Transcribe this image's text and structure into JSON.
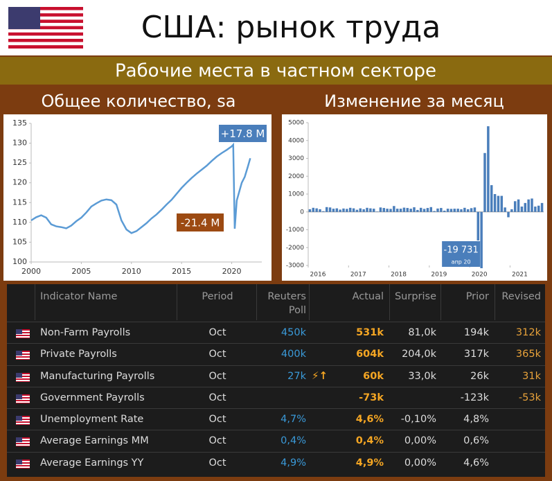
{
  "header": {
    "title": "США: рынок труда",
    "subtitle": "Рабочие места в частном секторе"
  },
  "chart_data": [
    {
      "type": "line",
      "title": "Общее количество, sa",
      "color": "#5b9bd5",
      "x": [
        2000,
        2000.5,
        2001,
        2001.5,
        2002,
        2002.5,
        2003,
        2003.5,
        2004,
        2004.5,
        2005,
        2005.5,
        2006,
        2006.5,
        2007,
        2007.5,
        2008,
        2008.5,
        2009,
        2009.5,
        2010,
        2010.5,
        2011,
        2011.5,
        2012,
        2012.5,
        2013,
        2013.5,
        2014,
        2014.5,
        2015,
        2015.5,
        2016,
        2016.5,
        2017,
        2017.5,
        2018,
        2018.5,
        2019,
        2019.5,
        2020,
        2020.15,
        2020.3,
        2020.5,
        2021,
        2021.3,
        2021.6,
        2021.85
      ],
      "values": [
        110.5,
        111.3,
        111.8,
        111.2,
        109.5,
        109,
        108.8,
        108.5,
        109.2,
        110.3,
        111.2,
        112.5,
        114,
        114.8,
        115.5,
        115.8,
        115.6,
        114.5,
        110.5,
        108.2,
        107.3,
        107.8,
        108.8,
        109.8,
        111,
        112,
        113.2,
        114.5,
        115.7,
        117.2,
        118.7,
        120,
        121.2,
        122.3,
        123.3,
        124.3,
        125.5,
        126.6,
        127.5,
        128.3,
        129.2,
        129.6,
        108.4,
        115.5,
        120,
        121.5,
        124,
        126.2
      ],
      "xlim": [
        2000,
        2023
      ],
      "xticks": [
        2000,
        2005,
        2010,
        2015,
        2020
      ],
      "ylim": [
        100,
        135
      ],
      "yticks": [
        100,
        105,
        110,
        115,
        120,
        125,
        130,
        135
      ],
      "annotations": [
        "+17.8 M",
        "-21.4 M"
      ]
    },
    {
      "type": "bar",
      "title": "Изменение за месяц",
      "color": "#4a7ebb",
      "categories": [
        "2016",
        null,
        null,
        null,
        null,
        null,
        null,
        null,
        null,
        null,
        null,
        null,
        "2017",
        null,
        null,
        null,
        null,
        null,
        null,
        null,
        null,
        null,
        null,
        null,
        "2018",
        null,
        null,
        null,
        null,
        null,
        null,
        null,
        null,
        null,
        null,
        null,
        "2019",
        null,
        null,
        null,
        null,
        null,
        null,
        null,
        null,
        null,
        null,
        null,
        "2020",
        null,
        null,
        null,
        null,
        null,
        null,
        null,
        null,
        null,
        null,
        null,
        "2021",
        null,
        null,
        null,
        null,
        null,
        null,
        null,
        null,
        null
      ],
      "values": [
        150,
        230,
        200,
        150,
        40,
        270,
        250,
        180,
        200,
        130,
        190,
        170,
        230,
        200,
        120,
        200,
        150,
        230,
        200,
        180,
        20,
        250,
        220,
        180,
        170,
        330,
        180,
        180,
        240,
        220,
        180,
        260,
        110,
        230,
        170,
        220,
        270,
        50,
        190,
        220,
        70,
        180,
        170,
        180,
        180,
        150,
        230,
        150,
        210,
        250,
        -1600,
        -19731,
        3300,
        4800,
        1500,
        1000,
        900,
        900,
        250,
        -300,
        150,
        600,
        700,
        300,
        500,
        700,
        750,
        300,
        350,
        500
      ],
      "value_labels": [
        null,
        null,
        null,
        null,
        null,
        null,
        null,
        null,
        null,
        null,
        null,
        null,
        null,
        null,
        null,
        null,
        null,
        null,
        null,
        null,
        null,
        null,
        null,
        null,
        null,
        null,
        null,
        null,
        null,
        null,
        null,
        null,
        null,
        null,
        null,
        null,
        null,
        null,
        null,
        null,
        null,
        null,
        null,
        null,
        null,
        null,
        null,
        null,
        null,
        null,
        null,
        "-19 731",
        null,
        null,
        null,
        null,
        null,
        null,
        null,
        null,
        null,
        null,
        null,
        null,
        null,
        null,
        null,
        null,
        null,
        null
      ],
      "annotations": [
        "апр 20"
      ],
      "ylim": [
        -3000,
        5000
      ],
      "yticks": [
        -3000,
        -2000,
        -1000,
        0,
        1000,
        2000,
        3000,
        4000,
        5000
      ]
    }
  ],
  "table": {
    "columns": [
      "Indicator Name",
      "Period",
      "Reuters Poll",
      "Actual",
      "Surprise",
      "Prior",
      "Revised"
    ],
    "rows": [
      [
        "Non-Farm Payrolls",
        "Oct",
        "450k",
        "531k",
        "81,0k",
        "194k",
        "312k"
      ],
      [
        "Private Payrolls",
        "Oct",
        "400k",
        "604k",
        "204,0k",
        "317k",
        "365k"
      ],
      [
        "Manufacturing Payrolls",
        "Oct",
        "27k",
        "60k",
        "33,0k",
        "26k",
        "31k"
      ],
      [
        "Government Payrolls",
        "Oct",
        null,
        "-73k",
        null,
        "-123k",
        "-53k"
      ],
      [
        "Unemployment Rate",
        "Oct",
        "4,7%",
        "4,6%",
        "-0,10%",
        "4,8%",
        null
      ],
      [
        "Average Earnings MM",
        "Oct",
        "0,4%",
        "0,4%",
        "0,00%",
        "0,6%",
        null
      ],
      [
        "Average Earnings YY",
        "Oct",
        "4,9%",
        "4,9%",
        "0,00%",
        "4,6%",
        null
      ]
    ]
  }
}
